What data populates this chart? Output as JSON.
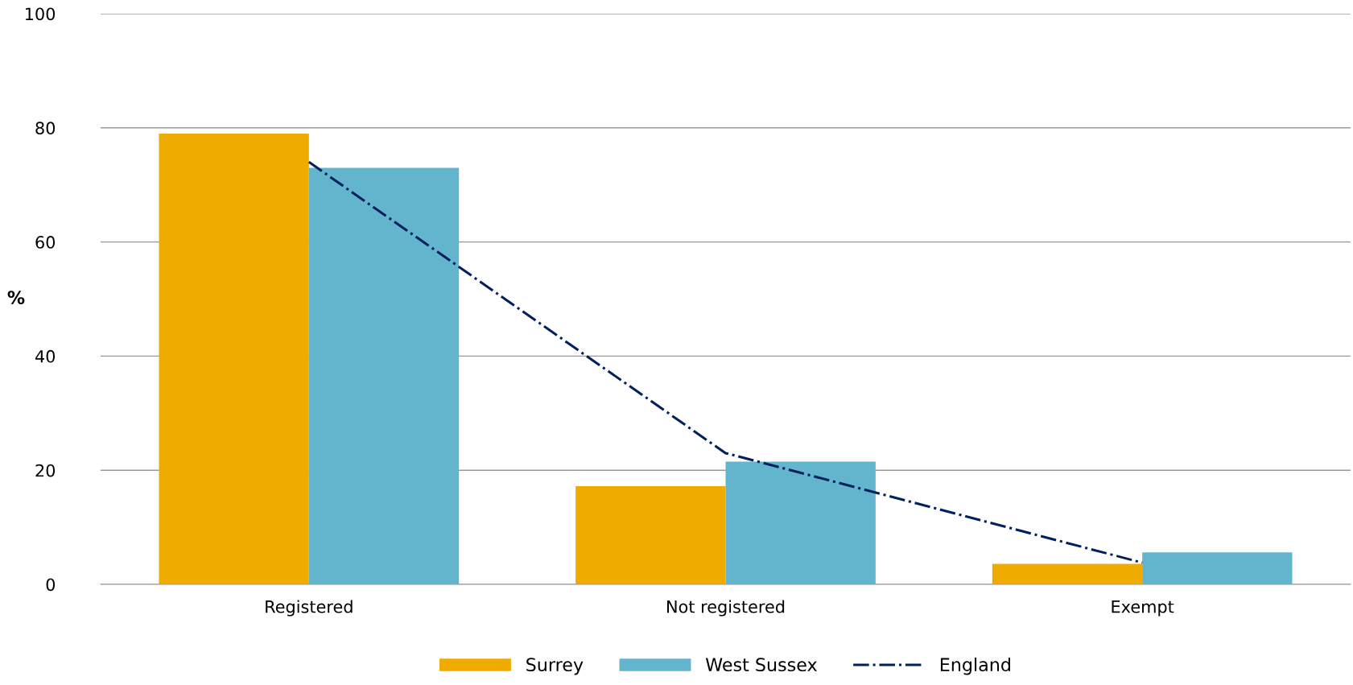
{
  "chart_data": {
    "type": "bar",
    "ylabel": "%",
    "categories": [
      "Registered",
      "Not registered",
      "Exempt"
    ],
    "series": [
      {
        "name": "Surrey",
        "color": "#f0ab00",
        "values": [
          79,
          17.2,
          3.6
        ]
      },
      {
        "name": "West Sussex",
        "color": "#62b5cc",
        "values": [
          73,
          21.5,
          5.6
        ]
      },
      {
        "name": "England",
        "type": "line",
        "color": "#002060",
        "line_style": "dashdot",
        "marker": "none",
        "values": [
          74,
          23,
          3.8
        ]
      }
    ],
    "ylim": [
      0,
      100
    ],
    "yticks": [
      0,
      20,
      40,
      60,
      80,
      100
    ],
    "grid": "y",
    "legend": "bottom"
  }
}
